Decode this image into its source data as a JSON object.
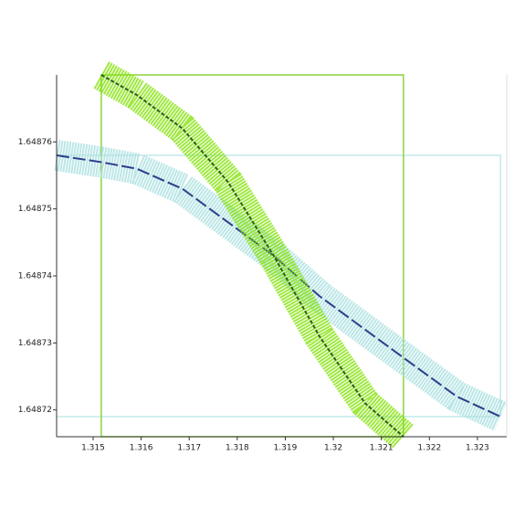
{
  "chart_data": {
    "type": "line",
    "xlim": [
      1.31424,
      1.32361
    ],
    "ylim": [
      1.648716,
      1.64877
    ],
    "xticks": [
      1.315,
      1.316,
      1.317,
      1.318,
      1.319,
      1.32,
      1.321,
      1.322,
      1.323
    ],
    "yticks": [
      1.64872,
      1.64873,
      1.64874,
      1.64875,
      1.64876
    ],
    "series": [
      {
        "color": "#2c3f8c",
        "band_color": "#a6dede",
        "x": [
          1.31424,
          1.31515,
          1.31591,
          1.31686,
          1.31781,
          1.31876,
          1.31971,
          1.32066,
          1.32161,
          1.32257,
          1.32348
        ],
        "values": [
          1.648758,
          1.648757,
          1.648756,
          1.648753,
          1.648748,
          1.648743,
          1.648737,
          1.648732,
          1.648727,
          1.648722,
          1.648719
        ]
      },
      {
        "color": "#2e5e1a",
        "band_color": "#7fe000",
        "x": [
          1.31517,
          1.31591,
          1.31686,
          1.31781,
          1.31876,
          1.31971,
          1.32066,
          1.32146
        ],
        "values": [
          1.64877,
          1.648767,
          1.648762,
          1.648754,
          1.648743,
          1.648731,
          1.648721,
          1.648716
        ]
      }
    ],
    "boxes": [
      {
        "color": "#a6dede",
        "x": [
          1.31424,
          1.32348
        ],
        "y": [
          1.648719,
          1.648758
        ]
      },
      {
        "color": "#8cd43c",
        "x": [
          1.31517,
          1.32146
        ],
        "y": [
          1.648716,
          1.64877
        ]
      }
    ]
  }
}
